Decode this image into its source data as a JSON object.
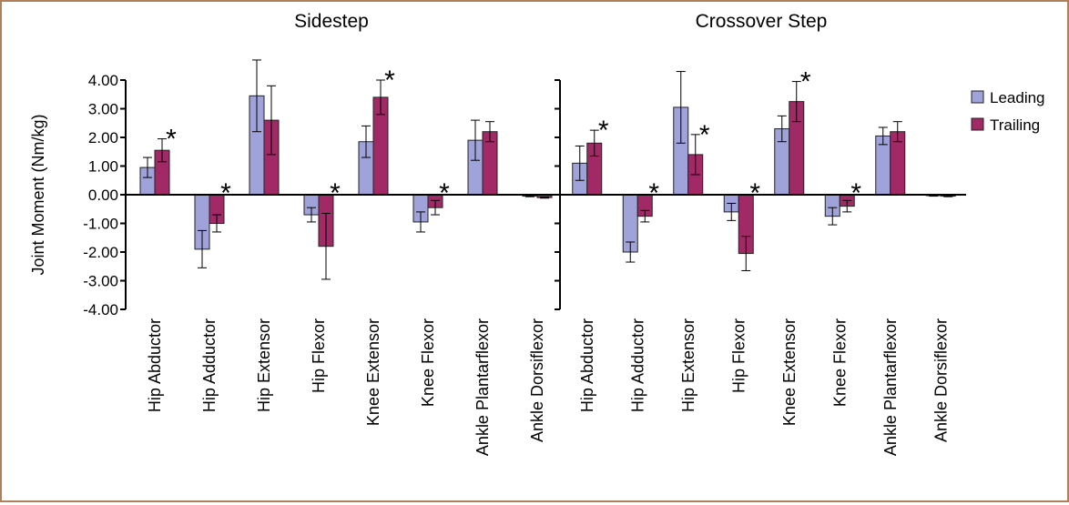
{
  "chart_data": {
    "type": "bar",
    "ylabel": "Joint Moment (Nm/kg)",
    "ylim": [
      -4,
      4
    ],
    "yticks": [
      "4.00",
      "3.00",
      "2.00",
      "1.00",
      "0.00",
      "-1.00",
      "-2.00",
      "-3.00",
      "-4.00"
    ],
    "legend": {
      "placement": "right",
      "entries": [
        "Leading",
        "Trailing"
      ]
    },
    "colors": {
      "Leading": "#9fa3da",
      "Trailing": "#a12a66"
    },
    "categories": [
      "Hip Abductor",
      "Hip Adductor",
      "Hip Extensor",
      "Hip Flexor",
      "Knee Extensor",
      "Knee Flexor",
      "Ankle Plantarflexor",
      "Ankle Dorsiflexor"
    ],
    "panels": [
      {
        "title": "Sidestep",
        "series": [
          {
            "name": "Leading",
            "values": [
              0.95,
              -1.9,
              3.45,
              -0.7,
              1.85,
              -0.95,
              1.9,
              -0.05
            ],
            "errors": [
              0.35,
              0.65,
              1.25,
              0.25,
              0.55,
              0.35,
              0.7,
              0.02
            ]
          },
          {
            "name": "Trailing",
            "values": [
              1.55,
              -1.0,
              2.6,
              -1.8,
              3.4,
              -0.45,
              2.2,
              -0.1
            ],
            "errors": [
              0.4,
              0.3,
              1.2,
              1.15,
              0.6,
              0.25,
              0.35,
              0.02
            ]
          }
        ],
        "significance": [
          "*",
          "*",
          "",
          "*",
          "*",
          "*",
          "",
          ""
        ]
      },
      {
        "title": "Crossover Step",
        "series": [
          {
            "name": "Leading",
            "values": [
              1.1,
              -2.0,
              3.05,
              -0.6,
              2.3,
              -0.75,
              2.05,
              -0.03
            ],
            "errors": [
              0.6,
              0.35,
              1.25,
              0.3,
              0.45,
              0.3,
              0.3,
              0.02
            ]
          },
          {
            "name": "Trailing",
            "values": [
              1.8,
              -0.75,
              1.4,
              -2.05,
              3.25,
              -0.4,
              2.2,
              -0.05
            ],
            "errors": [
              0.45,
              0.2,
              0.7,
              0.6,
              0.7,
              0.2,
              0.35,
              0.02
            ]
          }
        ],
        "significance": [
          "*",
          "*",
          "*",
          "*",
          "*",
          "*",
          "",
          ""
        ]
      }
    ]
  }
}
